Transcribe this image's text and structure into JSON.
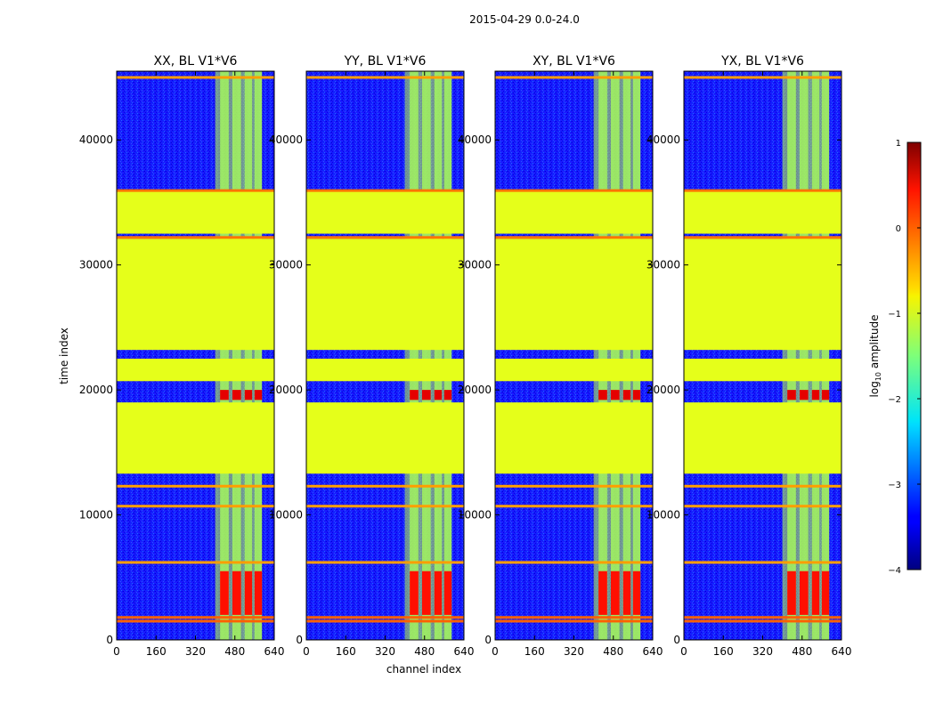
{
  "figure": {
    "suptitle": "2015-04-29 0.0-24.0",
    "xlabel": "channel index",
    "ylabel": "time index"
  },
  "colorbar": {
    "label_prefix": "log",
    "label_sub": "10",
    "label_suffix": " amplitude",
    "range": [
      -4,
      1
    ],
    "ticks": [
      "1",
      "0",
      "−1",
      "−2",
      "−3",
      "−4"
    ],
    "tick_values": [
      1,
      0,
      -1,
      -2,
      -3,
      -4
    ]
  },
  "chart_data": {
    "type": "heatmap",
    "colormap": "jet",
    "value_name": "log10 amplitude",
    "vmin": -4,
    "vmax": 1,
    "xlabel": "channel index",
    "ylabel": "time index",
    "xlim": [
      0,
      640
    ],
    "ylim": [
      0,
      45500
    ],
    "x_ticks": [
      "0",
      "160",
      "320",
      "480",
      "640"
    ],
    "x_tick_values": [
      0,
      160,
      320,
      480,
      640
    ],
    "y_ticks": [
      "0",
      "10000",
      "20000",
      "30000",
      "40000"
    ],
    "y_tick_values": [
      0,
      10000,
      20000,
      30000,
      40000
    ],
    "panels": [
      {
        "title": "XX, BL V1*V6",
        "background": -3.3
      },
      {
        "title": "YY, BL V1*V6",
        "background": -3.3
      },
      {
        "title": "XY, BL V1*V6",
        "background": -3.3
      },
      {
        "title": "YX, BL V1*V6",
        "background": -3.3
      }
    ],
    "flagged_time_ranges": [
      {
        "t0": 23200,
        "t1": 32100,
        "value": -1.0
      },
      {
        "t0": 32500,
        "t1": 35900,
        "value": -1.0
      },
      {
        "t0": 13300,
        "t1": 19000,
        "value": -1.0
      },
      {
        "t0": 20700,
        "t1": 22500,
        "value": -1.0
      }
    ],
    "rfi_channel_band": {
      "c0": 400,
      "c1": 590,
      "value": -1.2
    },
    "rfi_channel_strips": [
      {
        "c0": 420,
        "c1": 455
      },
      {
        "c0": 470,
        "c1": 505
      },
      {
        "c0": 520,
        "c1": 550
      },
      {
        "c0": 560,
        "c1": 590
      }
    ],
    "strong_rfi_time_ranges": [
      {
        "t0": 2000,
        "t1": 5500,
        "value": 0.3
      },
      {
        "t0": 19200,
        "t1": 20000,
        "value": 0.5
      }
    ],
    "horizontal_flag_lines": [
      {
        "t": 1500,
        "value": -0.1
      },
      {
        "t": 1800,
        "value": -0.1
      },
      {
        "t": 6200,
        "value": -0.4
      },
      {
        "t": 10700,
        "value": -0.4
      },
      {
        "t": 12300,
        "value": -0.4
      },
      {
        "t": 32200,
        "value": -0.2
      },
      {
        "t": 35950,
        "value": -0.2
      },
      {
        "t": 45000,
        "value": -0.4
      }
    ]
  }
}
